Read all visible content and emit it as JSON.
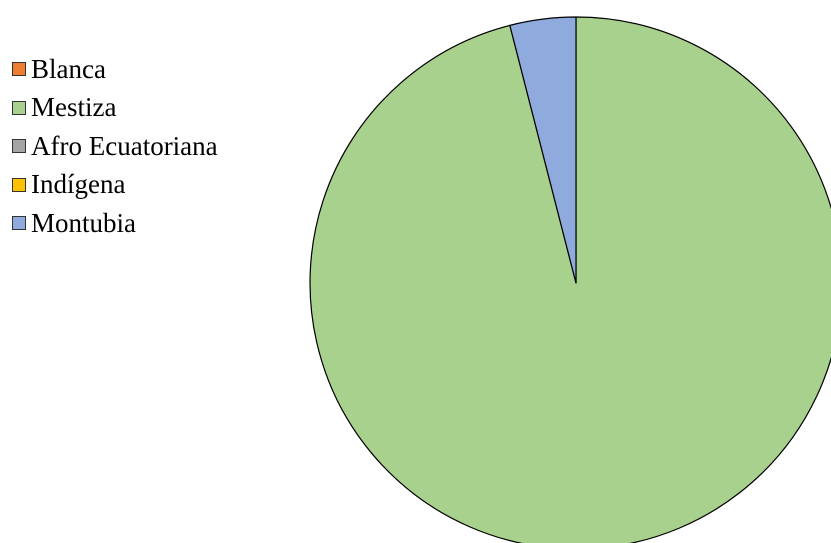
{
  "chart_data": {
    "type": "pie",
    "title": "",
    "categories": [
      "Blanca",
      "Mestiza",
      "Afro Ecuatoriana",
      "Indígena",
      "Montubia"
    ],
    "values": [
      0,
      96,
      0,
      0,
      4
    ],
    "colors": [
      "#ED7D31",
      "#A9D18E",
      "#A5A5A5",
      "#FFC000",
      "#8FAADC"
    ],
    "start_angle_deg": 0,
    "direction": "clockwise",
    "slice_border_color": "#000000",
    "legend": {
      "position": "left",
      "items": [
        {
          "label": "Blanca",
          "color": "#ED7D31"
        },
        {
          "label": "Mestiza",
          "color": "#A9D18E"
        },
        {
          "label": "Afro Ecuatoriana",
          "color": "#A5A5A5"
        },
        {
          "label": "Indígena",
          "color": "#FFC000"
        },
        {
          "label": "Montubia",
          "color": "#8FAADC"
        }
      ]
    }
  }
}
